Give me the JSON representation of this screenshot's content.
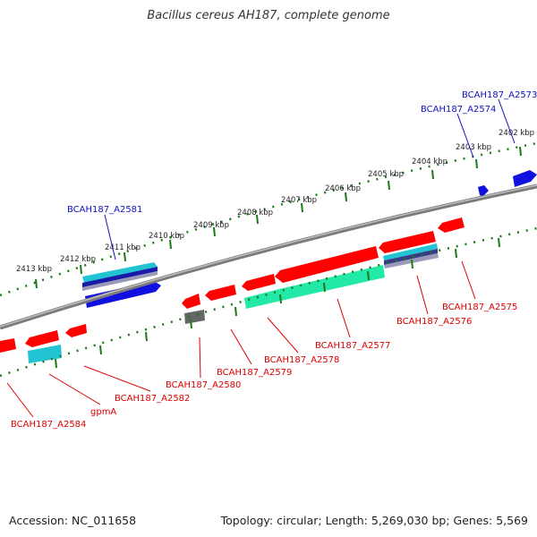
{
  "title": "Bacillus cereus AH187, complete genome",
  "accession": "Accession: NC_011658",
  "summary": "Topology: circular; Length: 5,269,030 bp; Genes: 5,569",
  "colors": {
    "backbone": "#7a7a7a",
    "tick": "#1a7a1a",
    "forward_gene": "#1010e0",
    "forward_cds_light": "#22c4d4",
    "reverse_gene": "#ff0000",
    "reverse_teal": "#22e8a8",
    "pseudo": "#666666",
    "forward_label": "#1010c0",
    "reverse_label": "#dd0000"
  },
  "scale_labels": [
    "2413 kbp",
    "2412 kbp",
    "2411 kbp",
    "2410 kbp",
    "2409 kbp",
    "2408 kbp",
    "2407 kbp",
    "2406 kbp",
    "2405 kbp",
    "2404 kbp",
    "2403 kbp",
    "2402 kbp"
  ],
  "forward_labels": [
    "BCAH187_A2581",
    "BCAH187_A2574",
    "BCAH187_A2573"
  ],
  "reverse_labels": [
    "BCAH187_A2584",
    "gpmA",
    "BCAH187_A2582",
    "BCAH187_A2580",
    "BCAH187_A2579",
    "BCAH187_A2578",
    "BCAH187_A2577",
    "BCAH187_A2576",
    "BCAH187_A2575"
  ]
}
